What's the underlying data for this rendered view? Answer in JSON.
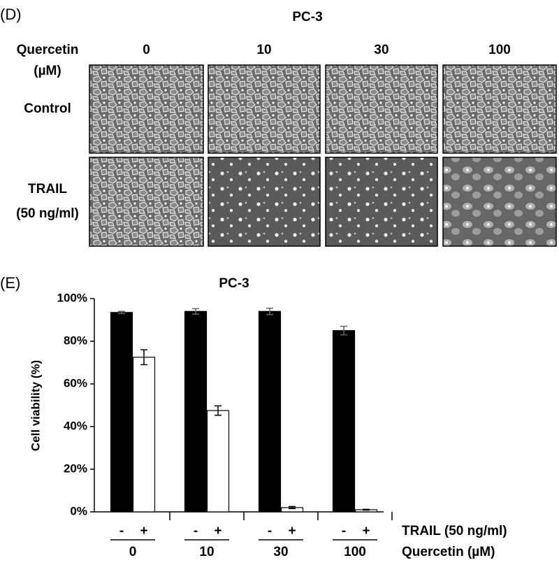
{
  "panel_d": {
    "label": "(D)",
    "title": "PC-3",
    "column_header": "Quercetin",
    "column_unit": "(µM)",
    "columns": [
      "0",
      "10",
      "30",
      "100"
    ],
    "rows": [
      [
        "Control"
      ],
      [
        "TRAIL",
        "(50 ng/ml)"
      ]
    ]
  },
  "chart_data": {
    "type": "bar",
    "panel_label": "(E)",
    "title": "PC-3",
    "ylabel": "Cell viability (%)",
    "categories": [
      "0",
      "10",
      "30",
      "100"
    ],
    "category_axis_label": "Quercetin (µM)",
    "series_axis_label": "TRAIL (50 ng/ml)",
    "series": [
      {
        "name": "-",
        "color": "#000000",
        "values": [
          93.5,
          94,
          94,
          85
        ],
        "errors": [
          0.5,
          1.3,
          1.5,
          2
        ]
      },
      {
        "name": "+",
        "color": "#ffffff",
        "values": [
          72.5,
          47.5,
          2,
          1
        ],
        "errors": [
          3.5,
          2.2,
          0.5,
          0.2
        ]
      }
    ],
    "ylim": [
      0,
      100
    ],
    "yticks": [
      {
        "value": 0,
        "label": "0%"
      },
      {
        "value": 20,
        "label": "20%"
      },
      {
        "value": 40,
        "label": "40%"
      },
      {
        "value": 60,
        "label": "60%"
      },
      {
        "value": 80,
        "label": "80%"
      },
      {
        "value": 100,
        "label": "100%"
      }
    ]
  }
}
